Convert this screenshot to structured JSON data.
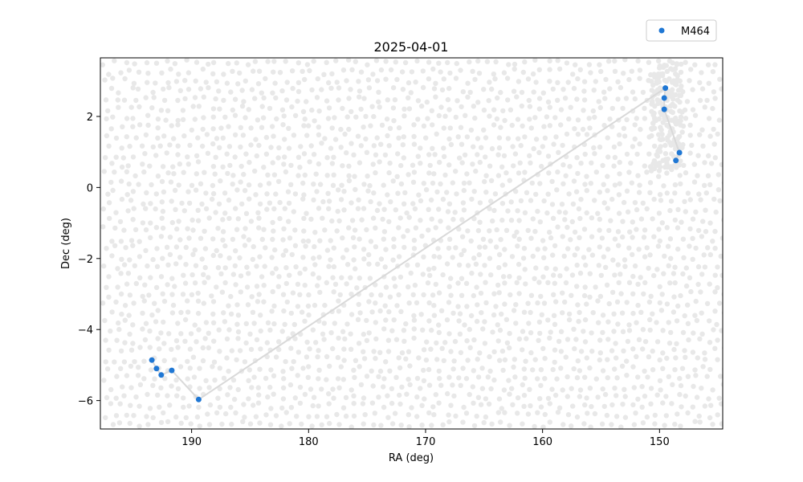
{
  "chart_data": {
    "type": "scatter",
    "title": "2025-04-01",
    "xlabel": "RA (deg)",
    "ylabel": "Dec (deg)",
    "xlim": [
      197.8,
      144.6
    ],
    "ylim": [
      -6.8,
      3.65
    ],
    "x_ticks": [
      190,
      180,
      170,
      160,
      150
    ],
    "x_tick_labels": [
      "190",
      "180",
      "170",
      "160",
      "150"
    ],
    "y_ticks": [
      -6,
      -4,
      -2,
      0,
      2
    ],
    "y_tick_labels": [
      "−6",
      "−4",
      "−2",
      "0",
      "2"
    ],
    "grid": false,
    "legend_position": "top-right (outside axes)",
    "series": [
      {
        "name": "M464",
        "color": "#1f77d4",
        "connector_color": "#d9d9d9",
        "points": [
          {
            "x": 193.4,
            "y": -4.86
          },
          {
            "x": 193.0,
            "y": -5.1
          },
          {
            "x": 192.6,
            "y": -5.28
          },
          {
            "x": 191.7,
            "y": -5.15
          },
          {
            "x": 189.4,
            "y": -5.97
          },
          {
            "x": 149.5,
            "y": 2.8
          },
          {
            "x": 149.6,
            "y": 2.52
          },
          {
            "x": 149.6,
            "y": 2.2
          },
          {
            "x": 148.3,
            "y": 0.98
          },
          {
            "x": 148.6,
            "y": 0.76
          }
        ]
      }
    ],
    "background_field": {
      "color": "#e8e8e8",
      "description_visible": "faint grey field markers covering RA 144.6–197.8, Dec -6.8–3.65"
    }
  }
}
